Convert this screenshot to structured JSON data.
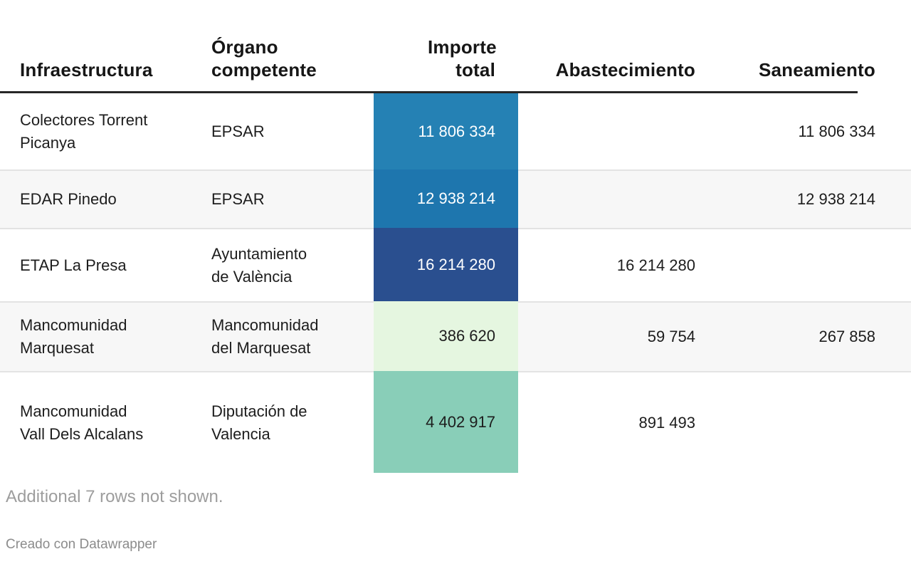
{
  "table": {
    "columns": [
      {
        "label": "Infraestructura"
      },
      {
        "label": "Órgano competente"
      },
      {
        "label": "Importe total"
      },
      {
        "label": "Abastecimiento"
      },
      {
        "label": "Saneamiento"
      }
    ],
    "rows": [
      {
        "infraestructura": "Colectores Torrent Picanya",
        "organo_competente": "EPSAR",
        "importe_total": "11 806 334",
        "abastecimiento": "",
        "saneamiento": "11 806 334",
        "importe_bg": "#2581b4",
        "importe_color": "#ffffff"
      },
      {
        "infraestructura": "EDAR Pinedo",
        "organo_competente": "EPSAR",
        "importe_total": "12 938 214",
        "abastecimiento": "",
        "saneamiento": "12 938 214",
        "importe_bg": "#1e76ae",
        "importe_color": "#ffffff"
      },
      {
        "infraestructura": "ETAP La Presa",
        "organo_competente": "Ayuntamiento de València",
        "importe_total": "16 214 280",
        "abastecimiento": "16 214 280",
        "saneamiento": "",
        "importe_bg": "#2a4f8f",
        "importe_color": "#ffffff"
      },
      {
        "infraestructura": "Mancomunidad Marquesat",
        "organo_competente": "Mancomunidad del Marquesat",
        "importe_total": "386 620",
        "abastecimiento": "59 754",
        "saneamiento": "267 858",
        "importe_bg": "#e5f6e0",
        "importe_color": "#1d1d1d"
      },
      {
        "infraestructura": "Mancomunidad Vall Dels Alcalans",
        "organo_competente": "Diputación de Valencia",
        "importe_total": "4 402 917",
        "abastecimiento": "891 493",
        "saneamiento": "",
        "importe_bg": "#89ceb8",
        "importe_color": "#1d1d1d"
      }
    ],
    "note": "Additional 7 rows not shown.",
    "attribution": "Creado con Datawrapper"
  },
  "colors": {
    "stripe": "#f7f7f7",
    "header_rule": "#262626",
    "row_border": "#e3e3e3",
    "note_text": "#9d9d9d",
    "attribution_text": "#8c8c8c"
  },
  "chart_data": {
    "type": "table",
    "title": "",
    "columns": [
      "Infraestructura",
      "Órgano competente",
      "Importe total",
      "Abastecimiento",
      "Saneamiento"
    ],
    "rows": [
      [
        "Colectores Torrent Picanya",
        "EPSAR",
        11806334,
        null,
        11806334
      ],
      [
        "EDAR Pinedo",
        "EPSAR",
        12938214,
        null,
        12938214
      ],
      [
        "ETAP La Presa",
        "Ayuntamiento de València",
        16214280,
        16214280,
        null
      ],
      [
        "Mancomunidad Marquesat",
        "Mancomunidad del Marquesat",
        386620,
        59754,
        267858
      ],
      [
        "Mancomunidad Vall Dels Alcalans",
        "Diputación de Valencia",
        4402917,
        891493,
        null
      ]
    ],
    "heatmap_column": "Importe total",
    "heatmap_cell_colors": [
      "#2581b4",
      "#1e76ae",
      "#2a4f8f",
      "#e5f6e0",
      "#89ceb8"
    ],
    "number_format": "thousands separated by space",
    "hidden_rows_note": "Additional 7 rows not shown.",
    "layout_hints": {
      "striped_rows": [
        2,
        4
      ],
      "right_edge_clipped": true
    }
  }
}
